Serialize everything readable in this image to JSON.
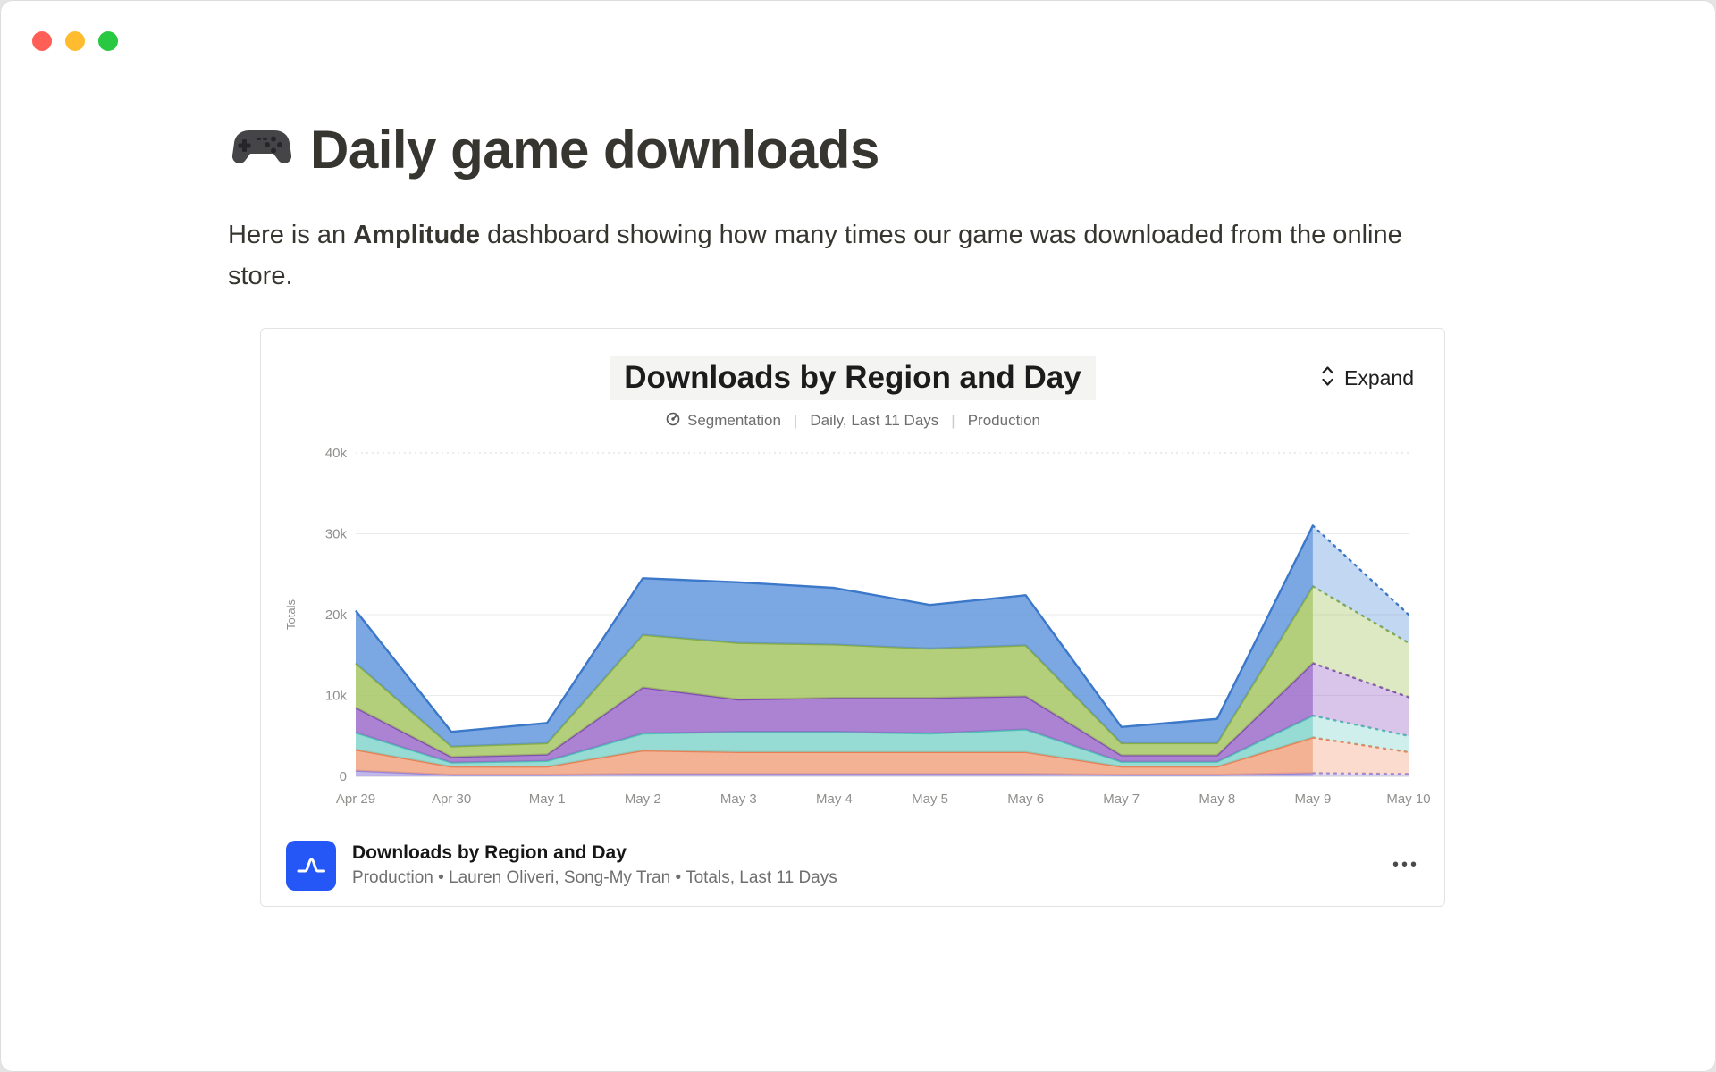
{
  "window": {
    "traffic_lights": [
      {
        "name": "close",
        "color": "#ff5f57"
      },
      {
        "name": "minimize",
        "color": "#febc2e"
      },
      {
        "name": "zoom",
        "color": "#28c840"
      }
    ]
  },
  "colors": {
    "amplitude_brand": "#2457f5",
    "text_primary": "#37352f"
  },
  "page": {
    "icon_emoji": "🎮",
    "title": "Daily game downloads",
    "intro": {
      "prefix": "Here is an ",
      "bold": "Amplitude",
      "suffix": " dashboard showing how many times our game was downloaded from the online store."
    }
  },
  "card": {
    "title": "Downloads by Region and Day",
    "expand_label": "Expand",
    "meta": {
      "segmentation_label": "Segmentation",
      "separator": "|",
      "range_label": "Daily, Last 11 Days",
      "env_label": "Production"
    },
    "footer": {
      "title": "Downloads by Region and Day",
      "subtitle": "Production • Lauren Oliveri, Song-My Tran • Totals, Last 11 Days",
      "menu_icon": "•••"
    }
  },
  "chart_data": {
    "type": "area",
    "stacked": true,
    "title": "Downloads by Region and Day",
    "xlabel": "",
    "ylabel": "Totals",
    "ylim": [
      0,
      40000
    ],
    "ytick_values": [
      0,
      10000,
      20000,
      30000,
      40000
    ],
    "ytick_labels": [
      "0",
      "10k",
      "20k",
      "30k",
      "40k"
    ],
    "grid": "horizontal",
    "legend": false,
    "categories": [
      "Apr 29",
      "Apr 30",
      "May 1",
      "May 2",
      "May 3",
      "May 4",
      "May 5",
      "May 6",
      "May 7",
      "May 8",
      "May 9",
      "May 10"
    ],
    "dashed_from_index": 10,
    "dashed_note": "final segment (May 9 to May 10) drawn dotted / lighter to indicate incomplete day",
    "series": [
      {
        "name": "lavender",
        "fill": "#b5a7e5",
        "stroke": "#9587d6",
        "values": [
          700,
          200,
          200,
          300,
          300,
          300,
          300,
          300,
          200,
          200,
          400,
          300
        ]
      },
      {
        "name": "orange",
        "fill": "#f2a17e",
        "stroke": "#e87f54",
        "values": [
          2600,
          1000,
          1000,
          2900,
          2700,
          2700,
          2700,
          2700,
          1000,
          1000,
          4400,
          2700
        ]
      },
      {
        "name": "teal",
        "fill": "#7fd4ca",
        "stroke": "#4fc2b5",
        "values": [
          2100,
          500,
          700,
          2100,
          2500,
          2500,
          2300,
          2800,
          600,
          600,
          2700,
          2000
        ]
      },
      {
        "name": "purple",
        "fill": "#9a66c9",
        "stroke": "#7f4cb3",
        "values": [
          3100,
          700,
          800,
          5700,
          4000,
          4200,
          4400,
          4100,
          800,
          800,
          6500,
          4800
        ]
      },
      {
        "name": "green",
        "fill": "#a2c45e",
        "stroke": "#89ad42",
        "values": [
          5500,
          1300,
          1400,
          6500,
          7000,
          6600,
          6100,
          6300,
          1500,
          1500,
          9500,
          6700
        ]
      },
      {
        "name": "blue",
        "fill": "#5e95dc",
        "stroke": "#3c78c9",
        "values": [
          6500,
          1800,
          2500,
          7000,
          7500,
          7000,
          5400,
          6200,
          2000,
          3000,
          7500,
          3500
        ]
      }
    ],
    "totals_per_day": [
      20500,
      5500,
      6600,
      24500,
      24000,
      23300,
      21200,
      22400,
      6100,
      7100,
      31000,
      20000
    ]
  }
}
